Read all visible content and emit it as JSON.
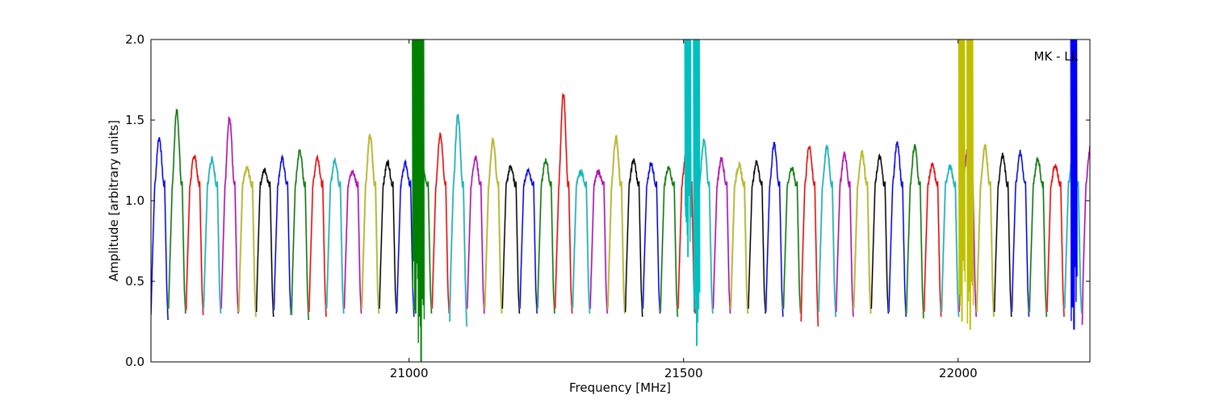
{
  "chart_data": {
    "type": "line",
    "title": "",
    "xlabel": "Frequency [MHz]",
    "ylabel": "Amplitude [arbitrary units]",
    "xlim": [
      20530,
      22240
    ],
    "ylim": [
      0.0,
      2.0
    ],
    "x_ticks": [
      21000,
      21500,
      22000
    ],
    "x_tick_labels": [
      "21000",
      "21500",
      "22000"
    ],
    "y_ticks": [
      0.0,
      0.5,
      1.0,
      1.5,
      2.0
    ],
    "y_tick_labels": [
      "0.0",
      "0.5",
      "1.0",
      "1.5",
      "2.0"
    ],
    "grid": false,
    "annotation": "MK - LL",
    "color_cycle": [
      "#0000ff",
      "#008000",
      "#ff0000",
      "#00bfbf",
      "#bf00bf",
      "#bfbf00",
      "#000000"
    ],
    "shadow_color": "#bbbbbb",
    "band_width_mhz": 32,
    "band_peak_estimates": [
      1.39,
      1.56,
      1.28,
      1.26,
      1.52,
      1.2,
      1.19,
      1.26,
      1.31,
      1.27,
      1.25,
      1.18,
      1.4,
      1.24,
      1.23,
      1.2,
      1.41,
      1.53,
      1.27,
      1.37,
      1.21,
      1.19,
      1.25,
      1.66,
      1.18,
      1.18,
      1.39,
      1.25,
      1.23,
      1.2,
      1.3,
      1.37,
      1.26,
      1.22,
      1.24,
      1.35,
      1.2,
      1.34,
      1.33,
      1.29,
      1.3,
      1.27,
      1.36,
      1.34,
      1.22,
      1.21,
      1.31,
      1.33,
      1.28,
      1.3,
      1.26,
      1.22,
      1.27,
      1.34
    ],
    "band_min_estimates": [
      0.26,
      0.3,
      0.29,
      0.3,
      0.3,
      0.28,
      0.28,
      0.29,
      0.26,
      0.28,
      0.3,
      0.3,
      0.3,
      0.3,
      0.28,
      0.3,
      0.3,
      0.22,
      0.3,
      0.3,
      0.3,
      0.3,
      0.3,
      0.3,
      0.3,
      0.3,
      0.3,
      0.28,
      0.3,
      0.28,
      0.3,
      0.3,
      0.3,
      0.3,
      0.3,
      0.28,
      0.3,
      0.22,
      0.28,
      0.28,
      0.3,
      0.3,
      0.28,
      0.27,
      0.28,
      0.28,
      0.28,
      0.28,
      0.28,
      0.28,
      0.28,
      0.28,
      0.3,
      0.2
    ],
    "spikes": [
      {
        "x": 21012,
        "ymin": 0.3,
        "ymax": 2.0,
        "color": "#008000"
      },
      {
        "x": 21022,
        "ymin": 0.0,
        "ymax": 2.0,
        "color": "#008000"
      },
      {
        "x": 21508,
        "ymin": 0.65,
        "ymax": 2.0,
        "color": "#00bfbf"
      },
      {
        "x": 21524,
        "ymin": 0.1,
        "ymax": 2.0,
        "color": "#00bfbf"
      },
      {
        "x": 22007,
        "ymin": 0.25,
        "ymax": 2.0,
        "color": "#bfbf00"
      },
      {
        "x": 22022,
        "ymin": 0.2,
        "ymax": 2.0,
        "color": "#bfbf00"
      },
      {
        "x": 22211,
        "ymin": 0.2,
        "ymax": 2.0,
        "color": "#0000ff"
      }
    ]
  }
}
